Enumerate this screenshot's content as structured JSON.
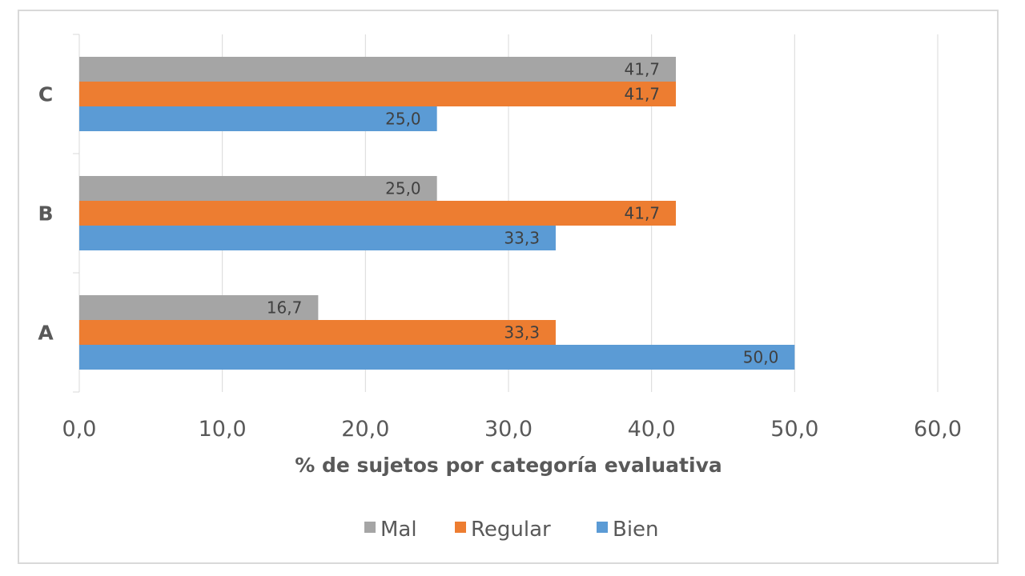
{
  "chart_data": {
    "type": "bar",
    "orientation": "horizontal",
    "categories": [
      "A",
      "B",
      "C"
    ],
    "series": [
      {
        "name": "Mal",
        "color": "#A5A5A5",
        "values": [
          16.7,
          25.0,
          41.7
        ]
      },
      {
        "name": "Regular",
        "color": "#ED7D31",
        "values": [
          33.3,
          41.7,
          41.7
        ]
      },
      {
        "name": "Bien",
        "color": "#5B9BD5",
        "values": [
          50.0,
          33.3,
          25.0
        ]
      }
    ],
    "title": "",
    "xlabel": "% de sujetos por categoría evaluativa",
    "ylabel": "",
    "xlim": [
      0,
      60
    ],
    "xticks": [
      "0,0",
      "10,0",
      "20,0",
      "30,0",
      "40,0",
      "50,0",
      "60,0"
    ],
    "grid": "vertical",
    "legend": "bottom",
    "legend_order": [
      "Mal",
      "Regular",
      "Bien"
    ]
  }
}
